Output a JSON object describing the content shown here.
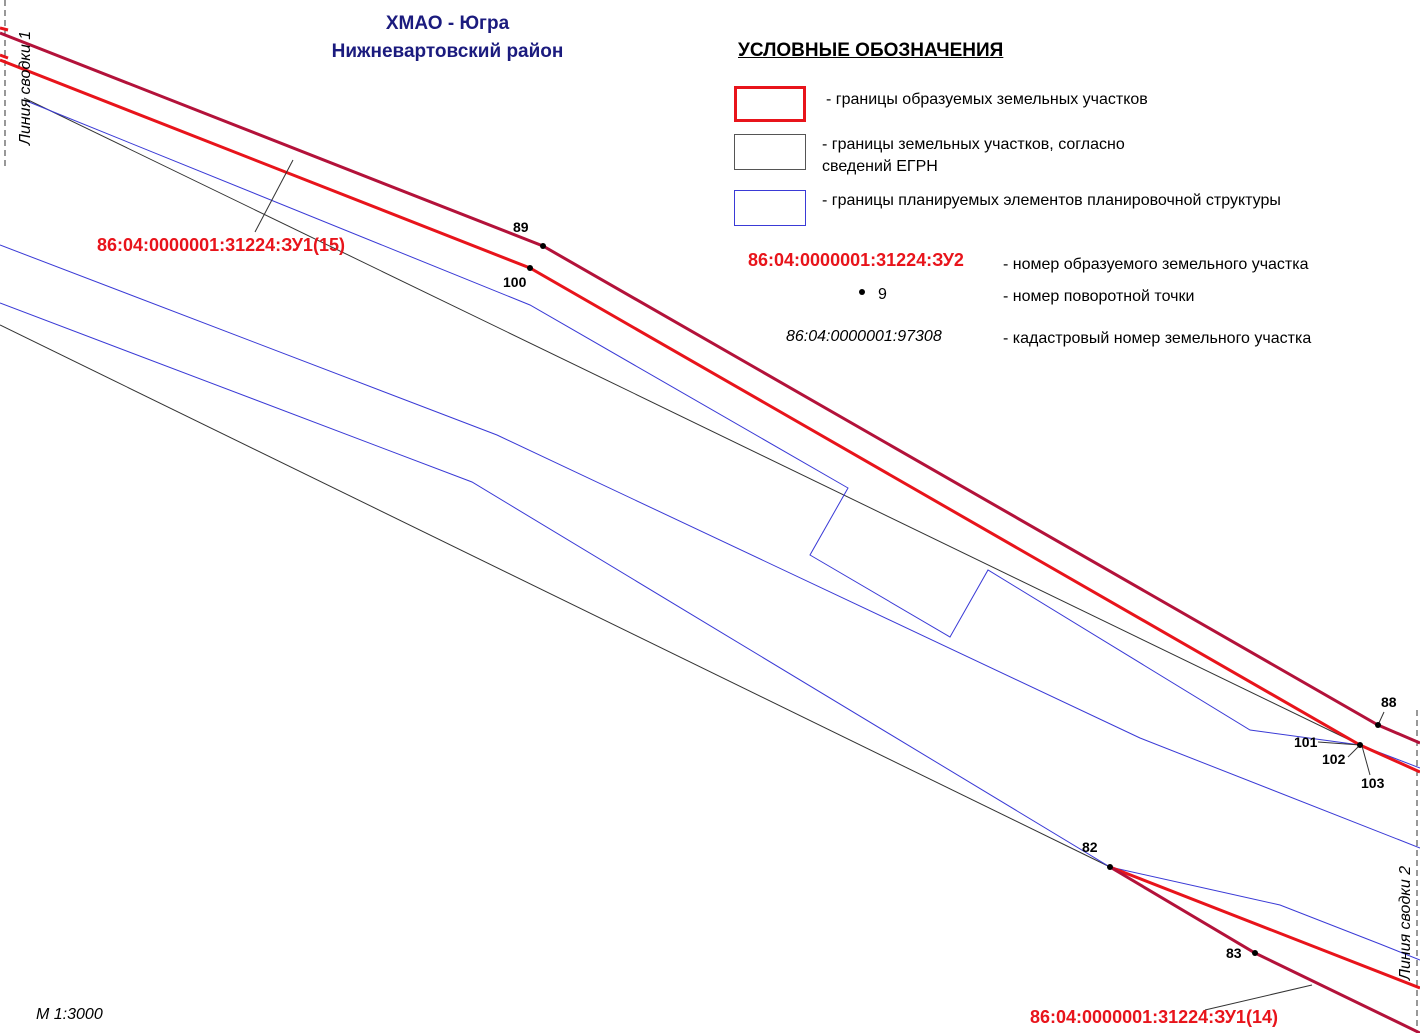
{
  "header": {
    "region": "ХМАО - Югра",
    "district": "Нижневартовский район"
  },
  "legend": {
    "heading": "УСЛОВНЫЕ ОБОЗНАЧЕНИЯ",
    "formed_parcels": "- границы образуемых земельных участков",
    "egrn_parcels_line1": "- границы земельных участков, согласно",
    "egrn_parcels_line2": "сведений ЕГРН",
    "planned_elements": "- границы планируемых элементов планировочной структуры",
    "parcel_number_sample": "86:04:0000001:31224:ЗУ2",
    "parcel_number_desc": "- номер образуемого земельного участка",
    "turning_point_sample": "9",
    "turning_point_desc": "- номер поворотной точки",
    "cadastral_sample": "86:04:0000001:97308",
    "cadastral_desc": "- кадастровый номер земельного участка"
  },
  "map": {
    "stitch_line_1": "Линия сводки 1",
    "stitch_line_2": "Линия сводки 2",
    "parcel_labels": {
      "zu15": "86:04:0000001:31224:ЗУ1(15)",
      "zu14": "86:04:0000001:31224:ЗУ1(14)"
    },
    "points": {
      "p89": "89",
      "p100": "100",
      "p88": "88",
      "p101": "101",
      "p102": "102",
      "p103": "103",
      "p82": "82",
      "p83": "83"
    },
    "scale": "М 1:3000"
  },
  "colors": {
    "formed_boundary": "#e8141b",
    "formed_boundary_dark": "#b3123a",
    "egrn_boundary": "#000000",
    "planned_boundary": "#3a3ad6",
    "title_color": "#1b1b7e"
  }
}
